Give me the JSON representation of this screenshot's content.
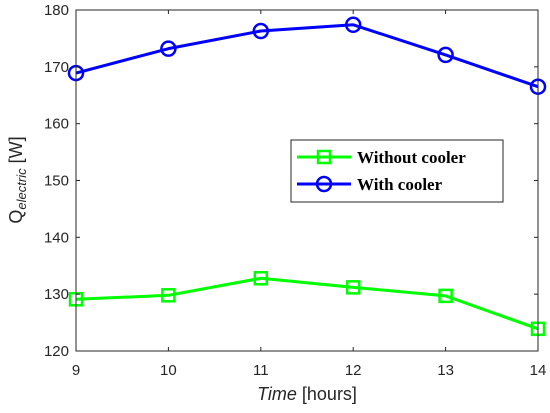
{
  "chart_data": {
    "type": "line",
    "x": [
      9,
      10,
      11,
      12,
      13,
      14
    ],
    "xlim": [
      9,
      14
    ],
    "ylim": [
      120,
      180
    ],
    "x_ticks": [
      "9",
      "10",
      "11",
      "12",
      "13",
      "14"
    ],
    "y_ticks": [
      "120",
      "130",
      "140",
      "150",
      "160",
      "170",
      "180"
    ],
    "xlabel": {
      "main": "Time",
      "unit": " [hours]"
    },
    "ylabel": {
      "main": "Q",
      "subscript": "electric",
      "unit": " [W]"
    },
    "grid": false,
    "legend_position": "center-right",
    "series": [
      {
        "name": "Without cooler",
        "marker": "square",
        "color": "#00ff00",
        "values": [
          129.1,
          129.8,
          132.8,
          131.2,
          129.7,
          123.9
        ]
      },
      {
        "name": "With cooler",
        "marker": "circle",
        "color": "#0000ff",
        "values": [
          168.9,
          173.2,
          176.3,
          177.4,
          172.1,
          166.5
        ]
      }
    ]
  }
}
